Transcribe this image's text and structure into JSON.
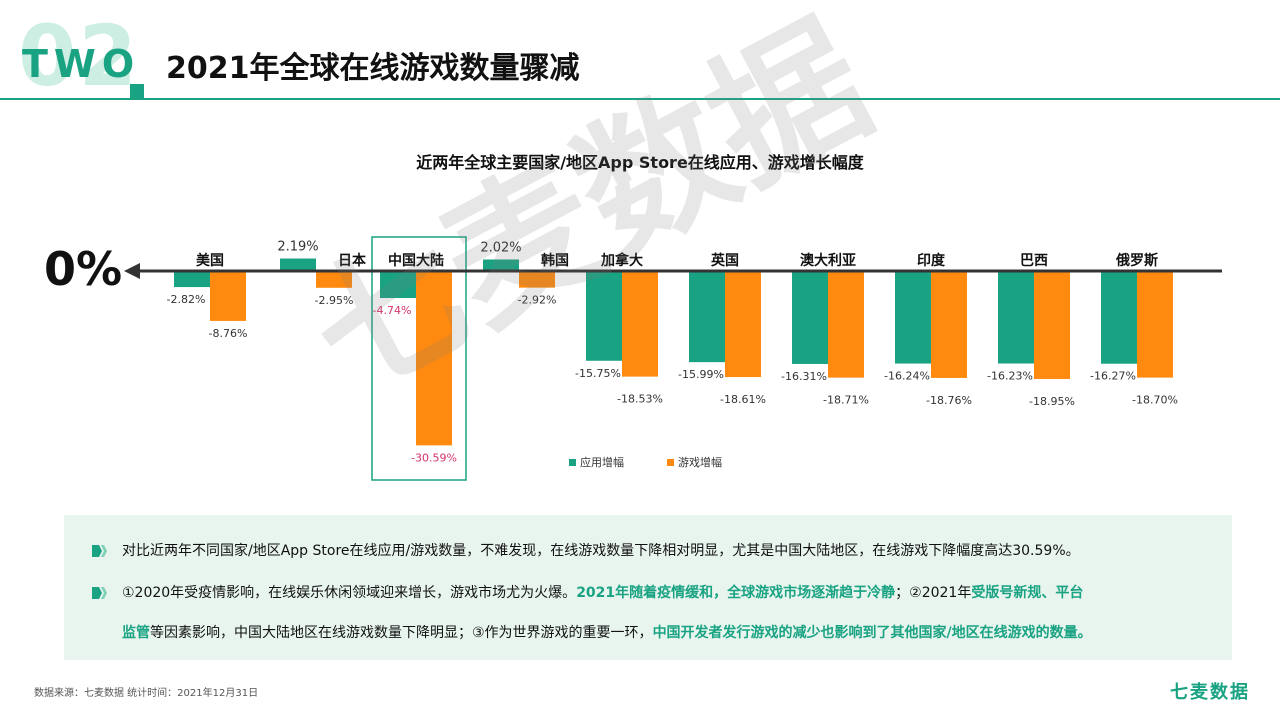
{
  "header": {
    "section_number": "02",
    "section_word": "TWO",
    "title": "2021年全球在线游戏数量骤减"
  },
  "colors": {
    "accent": "#1aa383",
    "app": "#1aa383",
    "game": "#ff8a0f",
    "negative_label_highlight": "#d6336c"
  },
  "zero_label": "0%",
  "chart_data": {
    "type": "bar",
    "title": "近两年全球主要国家/地区App Store在线应用、游戏增长幅度",
    "categories": [
      "美国",
      "日本",
      "中国大陆",
      "韩国",
      "加拿大",
      "英国",
      "澳大利亚",
      "印度",
      "巴西",
      "俄罗斯"
    ],
    "series": [
      {
        "name": "应用增幅",
        "color": "#1aa383",
        "values": [
          -2.82,
          2.19,
          -4.74,
          2.02,
          -15.75,
          -15.99,
          -16.31,
          -16.24,
          -16.23,
          -16.27
        ],
        "labels": [
          "-2.82%",
          "2.19%",
          "-4.74%",
          "2.02%",
          "-15.75%",
          "-15.99%",
          "-16.31%",
          "-16.24%",
          "-16.23%",
          "-16.27%"
        ]
      },
      {
        "name": "游戏增幅",
        "color": "#ff8a0f",
        "values": [
          -8.76,
          -2.95,
          -30.59,
          -2.92,
          -18.53,
          -18.61,
          -18.71,
          -18.76,
          -18.95,
          -18.7
        ],
        "labels": [
          "-8.76%",
          "-2.95%",
          "-30.59%",
          "-2.92%",
          "-18.53%",
          "-18.61%",
          "-18.71%",
          "-18.76%",
          "-18.95%",
          "-18.70%"
        ]
      }
    ],
    "highlight_category": "中国大陆",
    "legend_position": "bottom",
    "ylim": [
      -32,
      3
    ],
    "grid": false
  },
  "watermark": "七麦数据",
  "notes": [
    {
      "segments": [
        {
          "text": "对比近两年不同国家/地区App Store在线应用/游戏数量，不难发现，在线游戏数量下降相对明显，尤其是中国大陆地区，在线游戏下降幅度高达30.59%。",
          "hl": false
        }
      ]
    },
    {
      "segments": [
        {
          "text": "①2020年受疫情影响，在线娱乐休闲领域迎来增长，游戏市场尤为火爆。",
          "hl": false
        },
        {
          "text": "2021年随着疫情缓和，全球游戏市场逐渐趋于冷静",
          "hl": true
        },
        {
          "text": "；②2021年",
          "hl": false
        },
        {
          "text": "受版号新规、平台",
          "hl": true
        }
      ]
    },
    {
      "segments": [
        {
          "text": "监管",
          "hl": true
        },
        {
          "text": "等因素影响，中国大陆地区在线游戏数量下降明显；③作为世界游戏的重要一环，",
          "hl": false
        },
        {
          "text": "中国开发者发行游戏的减少也影响到了其他国家/地区在线游戏的数量。",
          "hl": true
        }
      ]
    }
  ],
  "footer": {
    "source": "数据来源：七麦数据  统计时间：2021年12月31日",
    "brand": "七麦数据"
  }
}
